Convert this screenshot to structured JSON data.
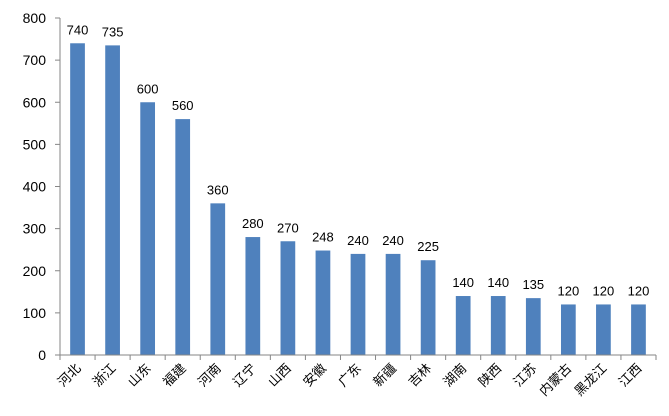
{
  "chart_data": {
    "type": "bar",
    "categories": [
      "河北",
      "浙江",
      "山东",
      "福建",
      "河南",
      "辽宁",
      "山西",
      "安徽",
      "广东",
      "新疆",
      "吉林",
      "湖南",
      "陕西",
      "江苏",
      "内蒙古",
      "黑龙江",
      "江西"
    ],
    "values": [
      740,
      735,
      600,
      560,
      360,
      280,
      270,
      248,
      240,
      240,
      225,
      140,
      140,
      135,
      120,
      120,
      120
    ],
    "ylim": [
      0,
      800
    ],
    "yticks": [
      0,
      100,
      200,
      300,
      400,
      500,
      600,
      700,
      800
    ],
    "grid": false,
    "legend": "none",
    "bar_color": "#4F81BD",
    "axis_color": "#868686"
  }
}
